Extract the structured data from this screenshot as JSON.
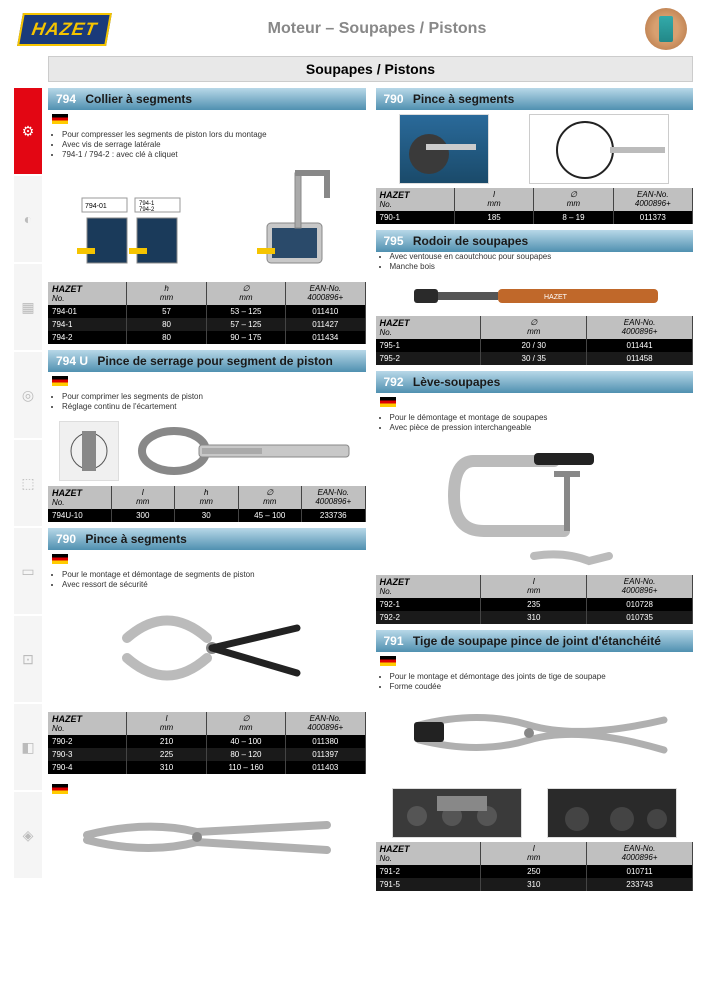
{
  "header": {
    "logo_text": "HAZET",
    "page_title": "Moteur – Soupapes / Pistons"
  },
  "section_title": "Soupapes / Pistons",
  "sidebar": {
    "items": [
      {
        "icon": "⚙",
        "active": true
      },
      {
        "icon": "◐",
        "active": false
      },
      {
        "icon": "▦",
        "active": false
      },
      {
        "icon": "◎",
        "active": false
      },
      {
        "icon": "⬚",
        "active": false
      },
      {
        "icon": "▭",
        "active": false
      },
      {
        "icon": "⊡",
        "active": false
      },
      {
        "icon": "◧",
        "active": false
      },
      {
        "icon": "◈",
        "active": false
      }
    ]
  },
  "table_headers": {
    "no": "No.",
    "no_brand": "HAZET",
    "h": "h",
    "h_unit": "mm",
    "l": "l",
    "l_unit": "mm",
    "d": "∅",
    "d_unit": "mm",
    "ean": "EAN-No.",
    "ean_prefix": "4000896+"
  },
  "products": {
    "p794": {
      "code": "794",
      "title": "Collier à segments",
      "desc": [
        "Pour compresser les segments de piston lors du montage",
        "Avec vis de serrage latérale",
        "794-1 / 794-2 : avec clé à cliquet"
      ],
      "columns": [
        "no",
        "h",
        "d",
        "ean"
      ],
      "rows": [
        [
          "794-01",
          "57",
          "53 – 125",
          "011410"
        ],
        [
          "794-1",
          "80",
          "57 – 125",
          "011427"
        ],
        [
          "794-2",
          "80",
          "90 – 175",
          "011434"
        ]
      ]
    },
    "p794U": {
      "code": "794 U",
      "title": "Pince de serrage pour segment de piston",
      "desc": [
        "Pour comprimer les segments de piston",
        "Réglage continu de l'écartement"
      ],
      "columns": [
        "no",
        "l",
        "h",
        "d",
        "ean"
      ],
      "rows": [
        [
          "794U-10",
          "300",
          "30",
          "45 – 100",
          "233736"
        ]
      ]
    },
    "p790a": {
      "code": "790",
      "title": "Pince à segments",
      "desc": [
        "Pour le montage et démontage de segments de piston",
        "Avec ressort de sécurité"
      ],
      "columns": [
        "no",
        "l",
        "d",
        "ean"
      ],
      "rows": [
        [
          "790-2",
          "210",
          "40 – 100",
          "011380"
        ],
        [
          "790-3",
          "225",
          "80 – 120",
          "011397"
        ],
        [
          "790-4",
          "310",
          "110 – 160",
          "011403"
        ]
      ]
    },
    "p790b": {
      "code": "790",
      "title": "Pince à segments",
      "desc": [
        "Pour le montage et démontage de segments de piston"
      ],
      "columns": [
        "no",
        "l",
        "d",
        "ean"
      ],
      "rows": [
        [
          "790-1",
          "185",
          "8 – 19",
          "011373"
        ]
      ]
    },
    "p795": {
      "code": "795",
      "title": "Rodoir de soupapes",
      "desc": [
        "Avec ventouse en caoutchouc pour soupapes",
        "Manche bois"
      ],
      "columns": [
        "no",
        "d",
        "ean"
      ],
      "rows": [
        [
          "795-1",
          "20 / 30",
          "011441"
        ],
        [
          "795-2",
          "30 / 35",
          "011458"
        ]
      ]
    },
    "p792": {
      "code": "792",
      "title": "Lève-soupapes",
      "desc": [
        "Pour le démontage et montage de soupapes",
        "Avec pièce de pression interchangeable"
      ],
      "columns": [
        "no",
        "l",
        "ean"
      ],
      "rows": [
        [
          "792-1",
          "235",
          "010728"
        ],
        [
          "792-2",
          "310",
          "010735"
        ]
      ]
    },
    "p791": {
      "code": "791",
      "title": "Tige de soupape pince de joint d'étanchéité",
      "desc": [
        "Pour le montage et démontage des joints de tige de soupape",
        "Forme coudée"
      ],
      "columns": [
        "no",
        "l",
        "ean"
      ],
      "rows": [
        [
          "791-2",
          "250",
          "010711"
        ],
        [
          "791-5",
          "310",
          "233743"
        ]
      ]
    }
  }
}
